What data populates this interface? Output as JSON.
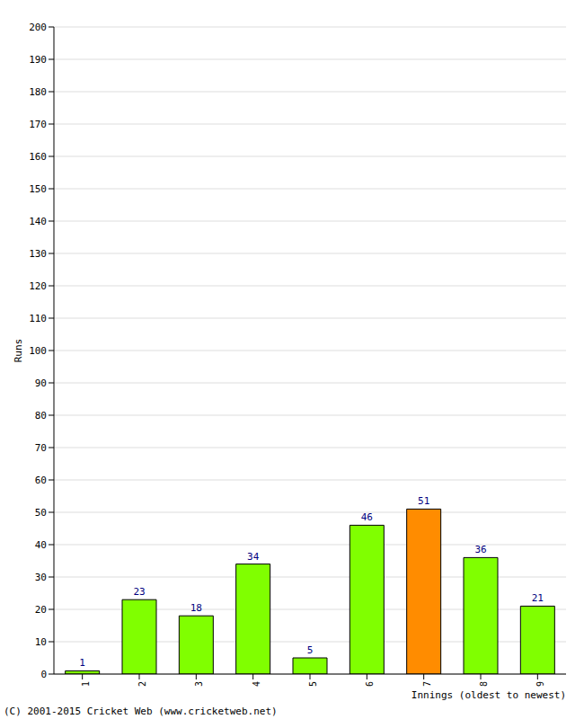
{
  "chart_data": {
    "type": "bar",
    "categories": [
      "1",
      "2",
      "3",
      "4",
      "5",
      "6",
      "7",
      "8",
      "9"
    ],
    "values": [
      1,
      23,
      18,
      34,
      5,
      46,
      51,
      36,
      21
    ],
    "colors": [
      "#80ff00",
      "#80ff00",
      "#80ff00",
      "#80ff00",
      "#80ff00",
      "#80ff00",
      "#ff8c00",
      "#80ff00",
      "#80ff00"
    ],
    "ylim": [
      0,
      200
    ],
    "yticks": [
      0,
      10,
      20,
      30,
      40,
      50,
      60,
      70,
      80,
      90,
      100,
      110,
      120,
      130,
      140,
      150,
      160,
      170,
      180,
      190,
      200
    ],
    "y_label": "Runs",
    "x_label": "Innings (oldest to newest)",
    "annotation": "(C) 2001-2015 Cricket Web (www.cricketweb.net)",
    "grid": true,
    "data_labels": true
  }
}
